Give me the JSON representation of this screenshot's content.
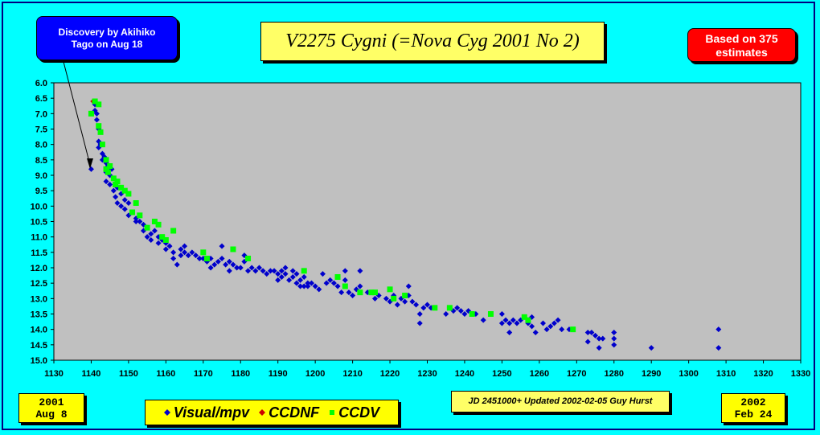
{
  "title": "V2275 Cygni (=Nova Cyg 2001 No 2)",
  "discovery_note": [
    "Discovery by Akihiko",
    "Tago on Aug 18"
  ],
  "estimates_note": [
    "Based on 375",
    "estimates"
  ],
  "start_date": [
    "2001",
    "Aug 8"
  ],
  "end_date": [
    "2002",
    "Feb 24"
  ],
  "footnote": "JD 2451000+ Updated 2002-02-05 Guy Hurst",
  "legend": [
    {
      "label": "Visual/mpv",
      "color": "#0000cc",
      "shape": "diamond"
    },
    {
      "label": "CCDNF",
      "color": "#cc0000",
      "shape": "diamond"
    },
    {
      "label": "CCDV",
      "color": "#00ff00",
      "shape": "square"
    }
  ],
  "colors": {
    "background": "#00ffff",
    "plot_area": "#c0c0c0",
    "visual": "#0000cc",
    "ccdnf": "#cc0000",
    "ccdv": "#00ff00"
  },
  "chart_data": {
    "type": "scatter",
    "title": "V2275 Cygni (=Nova Cyg 2001 No 2)",
    "xlabel": "",
    "ylabel": "",
    "xlim": [
      1130,
      1330
    ],
    "ylim": [
      15.0,
      6.0
    ],
    "y_inverted": true,
    "grid": false,
    "x_ticks": [
      1130,
      1140,
      1150,
      1160,
      1170,
      1180,
      1190,
      1200,
      1210,
      1220,
      1230,
      1240,
      1250,
      1260,
      1270,
      1280,
      1290,
      1300,
      1310,
      1320,
      1330
    ],
    "y_ticks": [
      "6.0",
      "6.5",
      "7.0",
      "7.5",
      "8.0",
      "8.5",
      "9.0",
      "9.5",
      "10.0",
      "10.5",
      "11.0",
      "11.5",
      "12.0",
      "12.5",
      "13.0",
      "13.5",
      "14.0",
      "14.5",
      "15.0"
    ],
    "series": [
      {
        "name": "Visual/mpv",
        "marker": "diamond",
        "color": "#0000cc",
        "points": [
          [
            1140,
            8.8
          ],
          [
            1141,
            6.7
          ],
          [
            1141,
            6.9
          ],
          [
            1141.5,
            7.0
          ],
          [
            1141.5,
            7.2
          ],
          [
            1142,
            7.5
          ],
          [
            1142,
            7.9
          ],
          [
            1142,
            8.1
          ],
          [
            1142.5,
            8.0
          ],
          [
            1143,
            8.3
          ],
          [
            1143,
            8.5
          ],
          [
            1143.5,
            8.4
          ],
          [
            1144,
            8.6
          ],
          [
            1144,
            8.9
          ],
          [
            1144,
            9.2
          ],
          [
            1144.5,
            8.7
          ],
          [
            1145,
            9.0
          ],
          [
            1145,
            9.3
          ],
          [
            1145.5,
            8.8
          ],
          [
            1146,
            9.1
          ],
          [
            1146,
            9.5
          ],
          [
            1146.5,
            9.7
          ],
          [
            1147,
            9.4
          ],
          [
            1147,
            9.9
          ],
          [
            1148,
            9.6
          ],
          [
            1148,
            10.0
          ],
          [
            1149,
            9.8
          ],
          [
            1149,
            10.1
          ],
          [
            1150,
            9.9
          ],
          [
            1150,
            10.3
          ],
          [
            1151,
            10.2
          ],
          [
            1152,
            10.4
          ],
          [
            1152,
            10.5
          ],
          [
            1153,
            10.5
          ],
          [
            1154,
            10.6
          ],
          [
            1154,
            10.8
          ],
          [
            1155,
            10.7
          ],
          [
            1155,
            11.0
          ],
          [
            1156,
            10.9
          ],
          [
            1156,
            11.1
          ],
          [
            1157,
            10.8
          ],
          [
            1158,
            11.0
          ],
          [
            1158,
            11.2
          ],
          [
            1159,
            11.1
          ],
          [
            1160,
            11.2
          ],
          [
            1160,
            11.4
          ],
          [
            1161,
            11.3
          ],
          [
            1162,
            11.5
          ],
          [
            1162,
            11.7
          ],
          [
            1163,
            11.9
          ],
          [
            1164,
            11.4
          ],
          [
            1164,
            11.6
          ],
          [
            1165,
            11.3
          ],
          [
            1165,
            11.5
          ],
          [
            1166,
            11.6
          ],
          [
            1167,
            11.5
          ],
          [
            1168,
            11.6
          ],
          [
            1169,
            11.7
          ],
          [
            1170,
            11.7
          ],
          [
            1171,
            11.8
          ],
          [
            1172,
            11.7
          ],
          [
            1172,
            12.0
          ],
          [
            1173,
            11.9
          ],
          [
            1174,
            11.8
          ],
          [
            1175,
            11.7
          ],
          [
            1175,
            11.3
          ],
          [
            1176,
            11.9
          ],
          [
            1177,
            11.8
          ],
          [
            1177,
            12.1
          ],
          [
            1178,
            11.9
          ],
          [
            1179,
            12.0
          ],
          [
            1180,
            12.0
          ],
          [
            1181,
            11.8
          ],
          [
            1181,
            11.6
          ],
          [
            1182,
            12.1
          ],
          [
            1183,
            12.0
          ],
          [
            1184,
            12.1
          ],
          [
            1185,
            12.0
          ],
          [
            1186,
            12.1
          ],
          [
            1187,
            12.2
          ],
          [
            1188,
            12.1
          ],
          [
            1189,
            12.1
          ],
          [
            1190,
            12.2
          ],
          [
            1190,
            12.4
          ],
          [
            1191,
            12.3
          ],
          [
            1191,
            12.1
          ],
          [
            1192,
            12.0
          ],
          [
            1192,
            12.2
          ],
          [
            1193,
            12.4
          ],
          [
            1194,
            12.1
          ],
          [
            1194,
            12.3
          ],
          [
            1195,
            12.5
          ],
          [
            1195,
            12.2
          ],
          [
            1196,
            12.4
          ],
          [
            1196,
            12.6
          ],
          [
            1197,
            12.3
          ],
          [
            1197,
            12.6
          ],
          [
            1198,
            12.5
          ],
          [
            1198,
            12.6
          ],
          [
            1199,
            12.5
          ],
          [
            1200,
            12.6
          ],
          [
            1201,
            12.7
          ],
          [
            1202,
            12.2
          ],
          [
            1203,
            12.5
          ],
          [
            1204,
            12.4
          ],
          [
            1205,
            12.5
          ],
          [
            1206,
            12.6
          ],
          [
            1207,
            12.8
          ],
          [
            1208,
            12.1
          ],
          [
            1208,
            12.4
          ],
          [
            1209,
            12.8
          ],
          [
            1210,
            12.9
          ],
          [
            1211,
            12.7
          ],
          [
            1212,
            12.1
          ],
          [
            1212,
            12.6
          ],
          [
            1214,
            12.8
          ],
          [
            1215,
            12.8
          ],
          [
            1216,
            13.0
          ],
          [
            1217,
            12.9
          ],
          [
            1219,
            13.0
          ],
          [
            1220,
            13.1
          ],
          [
            1221,
            12.9
          ],
          [
            1222,
            13.2
          ],
          [
            1223,
            13.0
          ],
          [
            1224,
            13.1
          ],
          [
            1225,
            12.9
          ],
          [
            1225,
            12.6
          ],
          [
            1226,
            13.1
          ],
          [
            1227,
            13.2
          ],
          [
            1228,
            13.5
          ],
          [
            1228,
            13.8
          ],
          [
            1229,
            13.3
          ],
          [
            1230,
            13.2
          ],
          [
            1231,
            13.3
          ],
          [
            1235,
            13.5
          ],
          [
            1236,
            13.3
          ],
          [
            1237,
            13.4
          ],
          [
            1238,
            13.3
          ],
          [
            1239,
            13.4
          ],
          [
            1240,
            13.5
          ],
          [
            1241,
            13.4
          ],
          [
            1243,
            13.5
          ],
          [
            1245,
            13.7
          ],
          [
            1247,
            13.5
          ],
          [
            1250,
            13.5
          ],
          [
            1250,
            13.8
          ],
          [
            1251,
            13.7
          ],
          [
            1252,
            13.8
          ],
          [
            1252,
            14.1
          ],
          [
            1253,
            13.7
          ],
          [
            1254,
            13.8
          ],
          [
            1255,
            13.7
          ],
          [
            1256,
            13.6
          ],
          [
            1257,
            13.8
          ],
          [
            1258,
            13.6
          ],
          [
            1258,
            13.9
          ],
          [
            1259,
            14.1
          ],
          [
            1261,
            13.8
          ],
          [
            1262,
            14.0
          ],
          [
            1263,
            13.9
          ],
          [
            1264,
            13.8
          ],
          [
            1265,
            13.7
          ],
          [
            1266,
            14.0
          ],
          [
            1268,
            14.0
          ],
          [
            1273,
            14.1
          ],
          [
            1273,
            14.4
          ],
          [
            1274,
            14.1
          ],
          [
            1275,
            14.2
          ],
          [
            1276,
            14.3
          ],
          [
            1276,
            14.6
          ],
          [
            1277,
            14.3
          ],
          [
            1280,
            14.1
          ],
          [
            1280,
            14.3
          ],
          [
            1280,
            14.5
          ],
          [
            1290,
            14.6
          ],
          [
            1308,
            14.0
          ],
          [
            1308,
            14.6
          ]
        ]
      },
      {
        "name": "CCDNF",
        "marker": "diamond",
        "color": "#cc0000",
        "points": [
          [
            1140.5,
            6.6
          ]
        ]
      },
      {
        "name": "CCDV",
        "marker": "square",
        "color": "#00ff00",
        "points": [
          [
            1140,
            7.0
          ],
          [
            1141,
            6.6
          ],
          [
            1142,
            6.7
          ],
          [
            1142,
            7.4
          ],
          [
            1142.5,
            7.6
          ],
          [
            1143,
            8.0
          ],
          [
            1144,
            8.5
          ],
          [
            1144,
            8.8
          ],
          [
            1144.5,
            8.9
          ],
          [
            1145,
            8.7
          ],
          [
            1146,
            9.1
          ],
          [
            1146.5,
            9.3
          ],
          [
            1147,
            9.2
          ],
          [
            1148,
            9.4
          ],
          [
            1149,
            9.5
          ],
          [
            1150,
            9.6
          ],
          [
            1151,
            10.2
          ],
          [
            1152,
            9.9
          ],
          [
            1153,
            10.3
          ],
          [
            1155,
            10.7
          ],
          [
            1157,
            10.5
          ],
          [
            1158,
            10.6
          ],
          [
            1159,
            11.0
          ],
          [
            1160,
            11.1
          ],
          [
            1162,
            10.8
          ],
          [
            1170,
            11.5
          ],
          [
            1171,
            11.7
          ],
          [
            1178,
            11.4
          ],
          [
            1182,
            11.7
          ],
          [
            1197,
            12.1
          ],
          [
            1206,
            12.3
          ],
          [
            1208,
            12.6
          ],
          [
            1212,
            12.8
          ],
          [
            1215,
            12.8
          ],
          [
            1216,
            12.8
          ],
          [
            1220,
            12.7
          ],
          [
            1221,
            13.0
          ],
          [
            1224,
            12.9
          ],
          [
            1232,
            13.3
          ],
          [
            1236,
            13.3
          ],
          [
            1242,
            13.5
          ],
          [
            1247,
            13.5
          ],
          [
            1256,
            13.6
          ],
          [
            1257,
            13.7
          ],
          [
            1269,
            14.0
          ]
        ]
      }
    ]
  }
}
